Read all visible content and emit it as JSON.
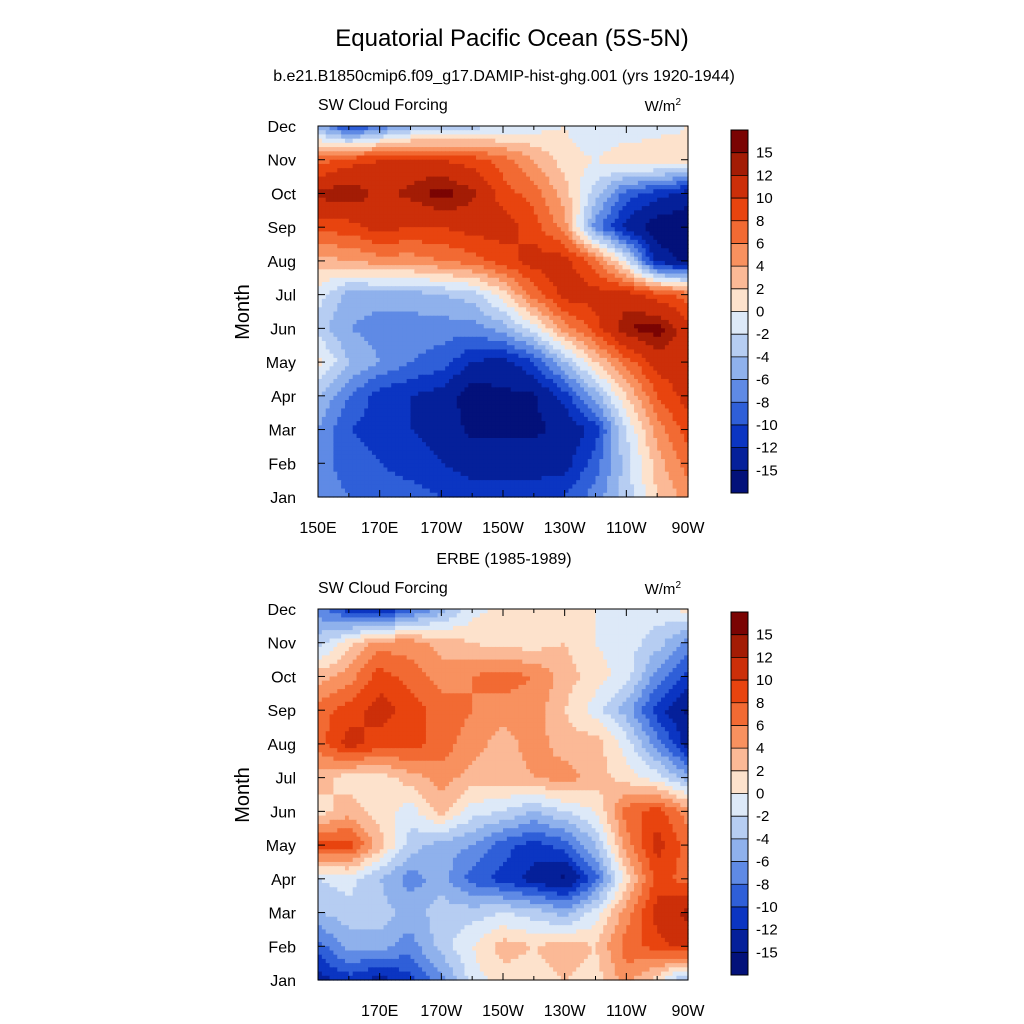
{
  "figure": {
    "title": "Equatorial Pacific Ocean (5S-5N)"
  },
  "colorbar_levels": [
    "15",
    "12",
    "10",
    "8",
    "6",
    "4",
    "2",
    "0",
    "-2",
    "-4",
    "-6",
    "-8",
    "-10",
    "-12",
    "-15"
  ],
  "colorbar_colors": [
    "#7a0403",
    "#a31c05",
    "#cc2f09",
    "#e8440f",
    "#f26a33",
    "#f8915f",
    "#fbb996",
    "#fde2cc",
    "#dde9f8",
    "#b6cdf2",
    "#8fb1ec",
    "#5f8ae5",
    "#2f5fd8",
    "#0b35c2",
    "#05209a",
    "#03117a"
  ],
  "chart_data": [
    {
      "type": "heatmap",
      "title": "b.e21.B1850cmip6.f09_g17.DAMIP-hist-ghg.001 (yrs 1920-1944)",
      "left_label": "SW Cloud Forcing",
      "units_label": "W/m",
      "units_superscript": "2",
      "ylabel": "Month",
      "y_ticks": [
        "Jan",
        "Feb",
        "Mar",
        "Apr",
        "May",
        "Jun",
        "Jul",
        "Aug",
        "Sep",
        "Oct",
        "Nov",
        "Dec"
      ],
      "x_ticks": [
        "150E",
        "170E",
        "170W",
        "150W",
        "130W",
        "110W",
        "90W"
      ],
      "x_range_lon": [
        150,
        270
      ],
      "months": [
        "Jan",
        "Feb",
        "Mar",
        "Apr",
        "May",
        "Jun",
        "Jul",
        "Aug",
        "Sep",
        "Oct",
        "Nov",
        "Dec"
      ],
      "longitudes": [
        150,
        160,
        170,
        180,
        190,
        200,
        210,
        220,
        230,
        240,
        250,
        260,
        270
      ],
      "values": [
        [
          -6,
          -7,
          -8,
          -8,
          -9,
          -10,
          -10,
          -10,
          -9,
          -6,
          -2,
          3,
          6
        ],
        [
          -6,
          -8,
          -9,
          -10,
          -11,
          -12,
          -12,
          -12,
          -12,
          -8,
          -2,
          4,
          8
        ],
        [
          -5,
          -9,
          -10,
          -11,
          -12,
          -14,
          -14,
          -14,
          -13,
          -10,
          -1,
          6,
          10
        ],
        [
          -3,
          -7,
          -10,
          -11,
          -12,
          -15,
          -14,
          -14,
          -10,
          -4,
          3,
          9,
          12
        ],
        [
          2,
          -3,
          -5,
          -7,
          -8,
          -11,
          -12,
          -9,
          -3,
          3,
          8,
          12,
          13
        ],
        [
          -2,
          -5,
          -6,
          -6,
          -6,
          -6,
          -4,
          0,
          6,
          10,
          15,
          16,
          12
        ],
        [
          0,
          -4,
          -4,
          -4,
          -3,
          -2,
          2,
          8,
          12,
          12,
          12,
          10,
          8
        ],
        [
          4,
          5,
          6,
          6,
          7,
          8,
          10,
          12,
          12,
          8,
          0,
          -12,
          -14
        ],
        [
          10,
          10,
          12,
          11,
          11,
          12,
          12,
          10,
          6,
          -6,
          -12,
          -15,
          -16
        ],
        [
          14,
          15,
          13,
          14,
          16,
          14,
          10,
          8,
          4,
          -2,
          -8,
          -10,
          -12
        ],
        [
          8,
          10,
          11,
          12,
          11,
          10,
          8,
          5,
          2,
          1,
          3,
          3,
          2
        ],
        [
          -4,
          -10,
          -7,
          -4,
          -3,
          -2,
          -1,
          0,
          1,
          -1,
          -1,
          0,
          1
        ]
      ],
      "colorbar_range": [
        -15,
        15
      ]
    },
    {
      "type": "heatmap",
      "title": "ERBE (1985-1989)",
      "left_label": "SW Cloud Forcing",
      "units_label": "W/m",
      "units_superscript": "2",
      "ylabel": "Month",
      "y_ticks": [
        "Jan",
        "Feb",
        "Mar",
        "Apr",
        "May",
        "Jun",
        "Jul",
        "Aug",
        "Sep",
        "Oct",
        "Nov",
        "Dec"
      ],
      "x_ticks": [
        "170E",
        "170W",
        "150W",
        "130W",
        "110W",
        "90W"
      ],
      "x_range_lon": [
        150,
        270
      ],
      "months": [
        "Jan",
        "Feb",
        "Mar",
        "Apr",
        "May",
        "Jun",
        "Jul",
        "Aug",
        "Sep",
        "Oct",
        "Nov",
        "Dec"
      ],
      "longitudes": [
        150,
        160,
        170,
        180,
        190,
        200,
        210,
        220,
        230,
        240,
        250,
        260,
        270
      ],
      "values": [
        [
          -12,
          -10,
          -12,
          -10,
          -6,
          0,
          2,
          2,
          3,
          2,
          6,
          2,
          -4
        ],
        [
          -8,
          -4,
          -4,
          -6,
          -2,
          1,
          4,
          3,
          4,
          3,
          8,
          10,
          12
        ],
        [
          -3,
          -2,
          -2,
          -4,
          -2,
          -2,
          -1,
          -2,
          -4,
          0,
          6,
          12,
          14
        ],
        [
          -1,
          0,
          -3,
          -6,
          -4,
          -8,
          -10,
          -12,
          -14,
          -8,
          2,
          10,
          8
        ],
        [
          10,
          10,
          4,
          -2,
          -4,
          -5,
          -8,
          -10,
          -8,
          -3,
          6,
          12,
          8
        ],
        [
          2,
          4,
          2,
          0,
          4,
          0,
          -1,
          -3,
          -1,
          1,
          8,
          10,
          6
        ],
        [
          4,
          2,
          2,
          4,
          6,
          4,
          4,
          5,
          6,
          4,
          2,
          0,
          -4
        ],
        [
          8,
          12,
          10,
          10,
          8,
          6,
          4,
          6,
          4,
          4,
          0,
          -6,
          -12
        ],
        [
          8,
          10,
          12,
          10,
          8,
          7,
          6,
          6,
          3,
          0,
          -4,
          -10,
          -14
        ],
        [
          4,
          6,
          10,
          8,
          6,
          7,
          8,
          7,
          4,
          2,
          0,
          -6,
          -10
        ],
        [
          -2,
          2,
          6,
          6,
          4,
          3,
          2,
          2,
          3,
          1,
          0,
          -2,
          -6
        ],
        [
          -6,
          -10,
          -12,
          -8,
          -4,
          0,
          2,
          3,
          3,
          1,
          1,
          0,
          2
        ]
      ],
      "colorbar_range": [
        -15,
        15
      ]
    }
  ]
}
